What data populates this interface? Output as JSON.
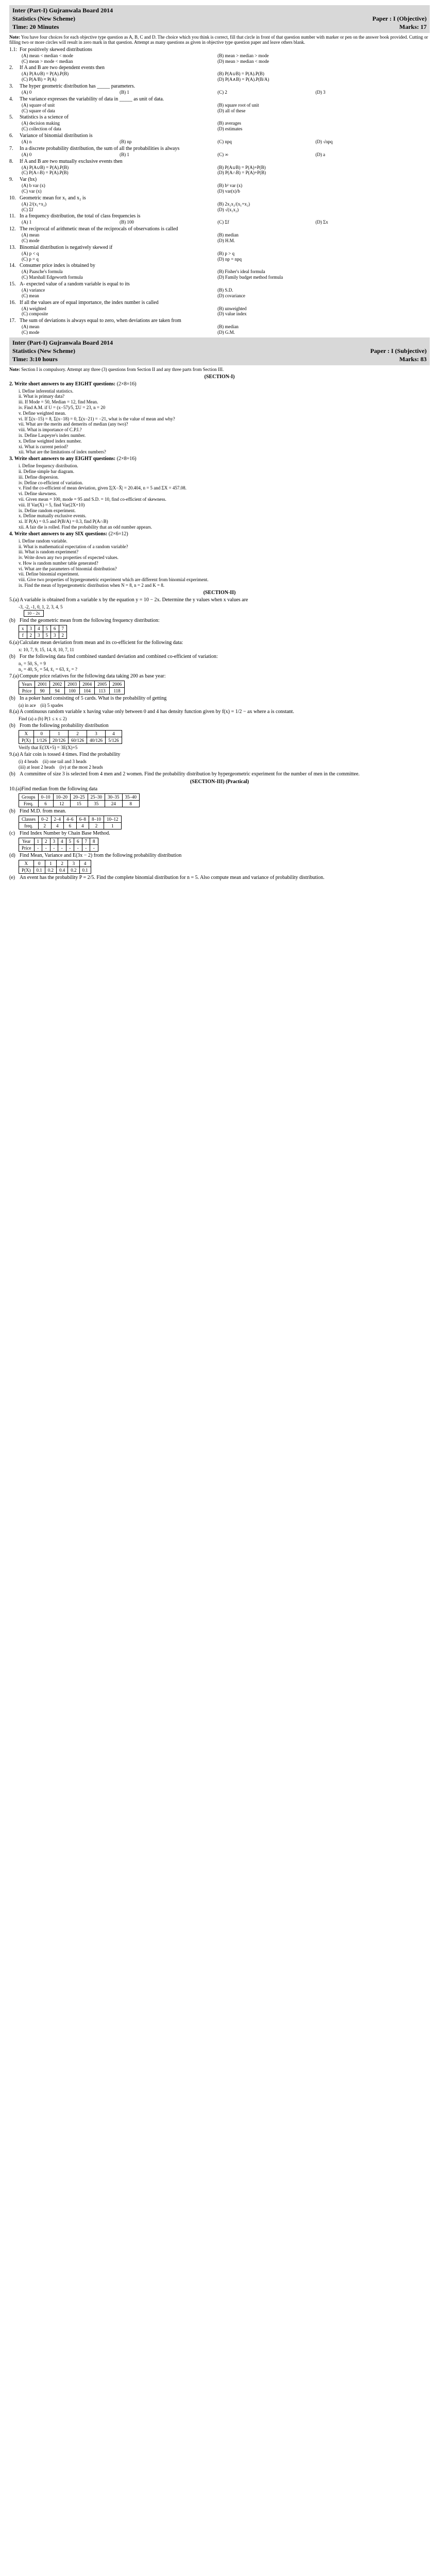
{
  "exam1": {
    "title_left": "Inter (Part-I) Gujranwala Board 2014",
    "subject": "Statistics (New Scheme)",
    "paper": "Paper : I (Objective)",
    "time": "Time: 20 Minutes",
    "marks": "Marks: 17",
    "note_label": "Note:",
    "note": "You have four choices for each objective type question as A, B, C and D. The choice which you think is correct, fill that circle in front of that question number with marker or pen on the answer book provided. Cutting or filling two or more circles will result in zero mark in that question. Attempt as many questions as given in objective type question paper and leave others blank."
  },
  "q1": {
    "n": "1.1:",
    "t": "For positively skewed distributions",
    "a": "(A) mean < median < mode",
    "b": "(B) mean > median > mode",
    "c": "(C) mean > mode < median",
    "d": "(D) mean > median < mode"
  },
  "q2": {
    "n": "2.",
    "t": "If A and B are two dependent events then",
    "a": "(A) P(A∪B) = P(A).P(B)",
    "b": "(B) P(A∪B) = P(A).P(B)",
    "c": "(C) P(A/B) = P(A)",
    "d": "(D) P(A∧B) = P(A).P(B/A)"
  },
  "q3": {
    "n": "3.",
    "t": "The hyper geometric distribution has _____ parameters.",
    "a": "(A) 0",
    "b": "(B) 1",
    "c": "(C) 2",
    "d": "(D) 3"
  },
  "q4": {
    "n": "4.",
    "t": "The variance expresses the variability of data in _____ as unit of data.",
    "a": "(A) square of unit",
    "b": "(B) square root of unit",
    "c": "(C) square of data",
    "d": "(D) all of these"
  },
  "q5": {
    "n": "5.",
    "t": "Statistics is a science of",
    "a": "(A) decision making",
    "b": "(B) averages",
    "c": "(C) collection of data",
    "d": "(D) estimates"
  },
  "q6": {
    "n": "6.",
    "t": "Variance of binomial distribution is",
    "a": "(A) n",
    "b": "(B) np",
    "c": "(C) npq",
    "d": "(D) √npq"
  },
  "q7": {
    "n": "7.",
    "t": "In a discrete probability distribution, the sum of all the probabilities is always",
    "a": "(A) 0",
    "b": "(B) 1",
    "c": "(C) ∞",
    "d": "(D) a"
  },
  "q8": {
    "n": "8.",
    "t": "If A and B are two mutually exclusive events then",
    "a": "(A) P(A∪B) = P(A).P(B)",
    "b": "(B) P(A∪B) = P(A)+P(B)",
    "c": "(C) P(A∩B) = P(A).P(B)",
    "d": "(D) P(A∩B) = P(A)+P(B)"
  },
  "q9": {
    "n": "9.",
    "t": "Var (bx)",
    "a": "(A) b var (x)",
    "b": "(B) b² var (x)",
    "c": "(C) var (x)",
    "d": "(D) var(x)/b"
  },
  "q10": {
    "n": "10.",
    "t": "Geometric mean for x₁ and x₂ is",
    "a": "(A) 2/(x₁+x₂)",
    "b": "(B) 2x₁x₂/(x₁+x₂)",
    "c": "(C) Σf",
    "d": "(D) √(x₁x₂)"
  },
  "q11": {
    "n": "11.",
    "t": "In a frequency distribution, the total of class frequencies is",
    "a": "(A) 1",
    "b": "(B) 100",
    "c": "(C) Σf",
    "d": "(D) Σx"
  },
  "q12": {
    "n": "12.",
    "t": "The reciprocal of arithmetic mean of the reciprocals of observations is called",
    "a": "(A) mean",
    "b": "(B) median",
    "c": "(C) mode",
    "d": "(D) H.M."
  },
  "q13": {
    "n": "13.",
    "t": "Binomial distribution is negatively skewed if",
    "a": "(A) p < q",
    "b": "(B) p > q",
    "c": "(C) p = q",
    "d": "(D) np = npq"
  },
  "q14": {
    "n": "14.",
    "t": "Consumer price index is obtained by",
    "a": "(A) Paasche's formula",
    "b": "(B) Fisher's ideal formula",
    "c": "(C) Marshall Edgeworth formula",
    "d": "(D) Family budget method formula"
  },
  "q15": {
    "n": "15.",
    "t": "A- expected value of a random variable is equal to its",
    "a": "(A) variance",
    "b": "(B) S.D.",
    "c": "(C) mean",
    "d": "(D) covariance"
  },
  "q16": {
    "n": "16.",
    "t": "If all the values are of equal importance, the index number is called",
    "a": "(A) weighted",
    "b": "(B) unweighted",
    "c": "(C) composite",
    "d": "(D) value index"
  },
  "q17": {
    "n": "17.",
    "t": "The sum of deviations is always equal to zero, when deviations are taken from",
    "a": "(A) mean",
    "b": "(B) median",
    "c": "(C) mode",
    "d": "(D) G.M."
  },
  "exam2": {
    "title_left": "Inter (Part-I) Gujranwala Board 2014",
    "subject": "Statistics (New Scheme)",
    "paper": "Paper : I (Subjective)",
    "time": "Time: 3:10 hours",
    "marks": "Marks: 83",
    "note_label": "Note:",
    "note": "Section I is compulsory. Attempt any three (3) questions from Section II and any three parts from Section III."
  },
  "s2q2": {
    "t": "Write short answers to any EIGHT questions:",
    "m": "(2×8=16)",
    "items": [
      "i. Define inferential statistics.",
      "ii. What is primary data?",
      "iii. If Mode = 50, Median = 12, find Mean.",
      "iv. Find A.M. if U = (x−57)/5, ΣU = 23, n = 20",
      "v. Define weighted mean.",
      "vi. If Σ(x−15) = 8, Σ(x−18) = 0, Σ(x−21) = −21, what is the value of mean and why?",
      "vii. What are the merits and demerits of median (any two)?",
      "viii. What is importance of C.P.I.?",
      "ix. Define Laspeyre's index number.",
      "x. Define weighted index number.",
      "xi. What is current period?",
      "xii. What are the limitations of index numbers?"
    ]
  },
  "s2q3": {
    "t": "Write short answers to any EIGHT questions:",
    "m": "(2×8=16)",
    "items": [
      "i. Define frequency distribution.",
      "ii. Define simple bar diagram.",
      "iii. Define dispersion.",
      "iv. Define co-efficient of variation.",
      "v. Find the co-efficient of mean deviation, given Σ|X−X̄| = 20.404, n = 5 and ΣX = 457.08.",
      "vi. Define skewness.",
      "vii. Given mean = 100, mode = 95 and S.D. = 10, find co-efficient of skewness.",
      "viii. If Var(X) = 5, find Var(2X+10)",
      "ix. Define random experiment.",
      "x. Define mutually exclusive events.",
      "xi. If P(A) = 0.5 and P(B/A) = 0.3, find P(A∩B)",
      "xii. A fair die is rolled. Find the probability that an odd number appears."
    ]
  },
  "s2q4": {
    "t": "Write short answers to any SIX questions:",
    "m": "(2×6=12)",
    "items": [
      "i. Define random variable.",
      "ii. What is mathematical expectation of a random variable?",
      "iii. What is random experiment?",
      "iv. Write down any two properties of expected values.",
      "v. How is random number table generated?",
      "vi. What are the parameters of binomial distribution?",
      "vii. Define binomial experiment.",
      "viii. Give two properties of hypergeometric experiment which are different from binomial experiment.",
      "ix. Find the mean of hypergeometric distribution when N = 8, n = 2 and K = 8."
    ]
  },
  "section2": "(SECTION-II)",
  "s2q5a": {
    "n": "5.(a)",
    "t": "A variable is obtained from a variable x by the equation y = 10 − 2x. Determine the y values when x values are",
    "v": "-3, -2, -1, 0, 1, 2, 3, 4, 5",
    "m": "10 − 2x"
  },
  "s2q5b": {
    "n": "(b)",
    "t": "Find the geometric mean from the following frequency distribution:",
    "h": [
      "x",
      "3",
      "4",
      "5",
      "6",
      "7"
    ],
    "r": [
      "f",
      "2",
      "3",
      "5",
      "3",
      "2"
    ]
  },
  "s2q6a": {
    "n": "6.(a)",
    "t": "Calculate mean deviation from mean and its co-efficient for the following data:",
    "v": "x: 10, 7, 9, 15, 14, 8, 10, 7, 11"
  },
  "s2q6b": {
    "n": "(b)",
    "t": "For the following data find combined standard deviation and combined co-efficient of variation:",
    "v": [
      "n₁ = 50,   S₁ = 9",
      "n₂ = 40,   S₂ = 54,   x̄₁ = 63,   x̄₂ = ?"
    ]
  },
  "s2q7a": {
    "n": "7.(a)",
    "t": "Compute price relatives for the following data taking 200 as base year:",
    "h": [
      "Years",
      "2001",
      "2002",
      "2003",
      "2004",
      "2005",
      "2006"
    ],
    "r": [
      "Price",
      "90",
      "94",
      "100",
      "104",
      "113",
      "118"
    ]
  },
  "s2q7b": {
    "n": "(b)",
    "t": "In a poker hand consisting of 5 cards. What is the probability of getting",
    "v": [
      "(a) in ace",
      "(ii) 5 spades"
    ]
  },
  "s2q8a": {
    "n": "8.(a)",
    "t": "A continuous random variable x having value only between 0 and 4 has density function given by f(x) = 1/2 − ax where a is constant.",
    "v": "Find (a) a    (b) P(1 ≤ x ≤ 2)"
  },
  "s2q8b": {
    "n": "(b)",
    "t": "From the following probability distribution",
    "h": [
      "X",
      "0",
      "1",
      "2",
      "3",
      "4"
    ],
    "r": [
      "P(X)",
      "1/126",
      "20/126",
      "60/126",
      "40/126",
      "5/126"
    ],
    "v": "Verify that E(3X+5) = 3E(X)+5"
  },
  "s2q9a": {
    "n": "9.(a)",
    "t": "A fair coin is tossed 4 times. Find the probability",
    "v": [
      "(i) 4 heads",
      "(ii) one tail and 3 heads",
      "(iii) at least 2 heads",
      "(iv) at the most 2 heads"
    ]
  },
  "s2q9b": {
    "n": "(b)",
    "t": "A committee of size 3 is selected from 4 men and 2 women. Find the probability distribution by hypergeometric experiment for the number of men in the committee."
  },
  "section3": "(SECTION-III) (Practical)",
  "s3q10a": {
    "n": "10.(a)",
    "t": "Find median from the following data",
    "h": [
      "Groups",
      "0–10",
      "10–20",
      "20–25",
      "25–30",
      "30–35",
      "35–40"
    ],
    "r": [
      "Freq.",
      "6",
      "12",
      "15",
      "35",
      "24",
      "8"
    ]
  },
  "s3q10b": {
    "n": "(b)",
    "t": "Find M.D. from mean.",
    "h": [
      "Classes",
      "0–2",
      "2–4",
      "4–6",
      "6–8",
      "8–10",
      "10–12"
    ],
    "r": [
      "freq.",
      "2",
      "4",
      "6",
      "4",
      "2",
      "1"
    ]
  },
  "s3q10c": {
    "n": "(c)",
    "t": "Find Index Number by Chain Base Method.",
    "h": [
      "Year",
      "1",
      "2",
      "3",
      "4",
      "5",
      "6",
      "7",
      "8"
    ],
    "r": [
      "Price",
      "-",
      "-",
      "-",
      "-",
      "-",
      "-",
      "-",
      "-"
    ]
  },
  "s3q10d": {
    "n": "(d)",
    "t": "Find Mean, Variance and E(3x − 2) from the following probability distribution",
    "h": [
      "X",
      "0",
      "1",
      "2",
      "3",
      "4"
    ],
    "r": [
      "P(X)",
      "0.1",
      "0.2",
      "0.4",
      "0.2",
      "0.1"
    ]
  },
  "s3q10e": {
    "n": "(e)",
    "t": "An event has the probability P = 2/5. Find the complete binomial distribution for n = 5. Also compute mean and variance of probability distribution."
  }
}
